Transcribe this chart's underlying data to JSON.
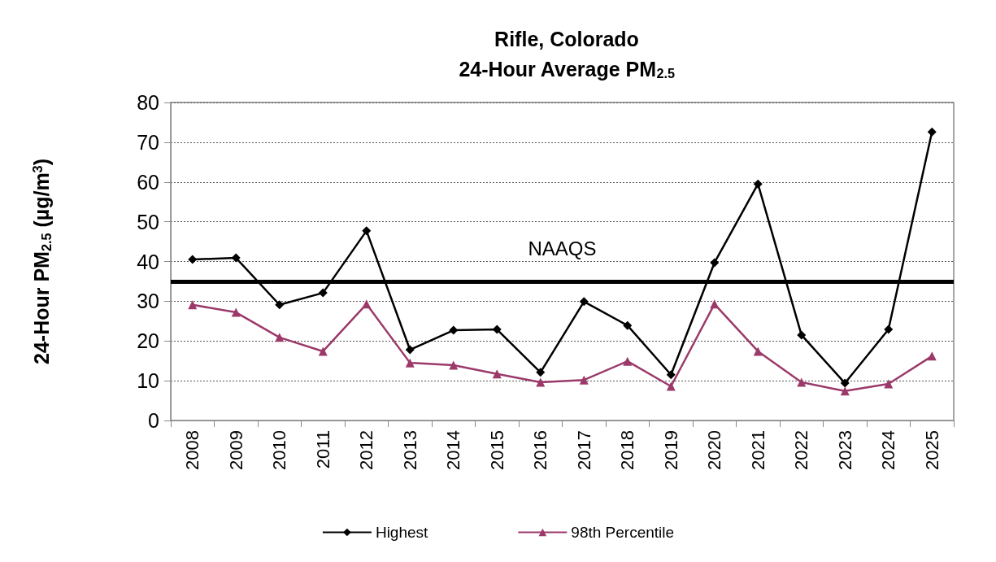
{
  "chart_data": {
    "type": "line",
    "title": "Rifle, Colorado",
    "subtitle": "24-Hour Average PM$_{2.5}$",
    "ylabel": "24-Hour PM$_{2.5}$ (µg/m$^{3}$)",
    "categories": [
      "2008",
      "2009",
      "2010",
      "2011",
      "2012",
      "2013",
      "2014",
      "2015",
      "2016",
      "2017",
      "2018",
      "2019",
      "2020",
      "2021",
      "2022",
      "2023",
      "2024",
      "2025"
    ],
    "series": [
      {
        "name": "Highest",
        "color": "#000000",
        "marker": "diamond",
        "values": [
          40.5,
          40.9,
          29.1,
          32.1,
          47.7,
          17.8,
          22.7,
          22.9,
          12.1,
          29.9,
          23.9,
          11.5,
          39.7,
          59.5,
          21.5,
          9.4,
          22.9,
          72.6
        ]
      },
      {
        "name": "98th Percentile",
        "color": "#9b3a6a",
        "marker": "triangle",
        "values": [
          29.1,
          27.2,
          20.9,
          17.4,
          29.3,
          14.5,
          13.9,
          11.7,
          9.6,
          10.2,
          14.9,
          8.6,
          29.3,
          17.4,
          9.6,
          7.4,
          9.2,
          16.2
        ]
      }
    ],
    "ylim": [
      0,
      80
    ],
    "yticks": [
      0,
      10,
      20,
      30,
      40,
      50,
      60,
      70,
      80
    ],
    "grid": "y",
    "legend": "bottom",
    "line_style": "solid",
    "ref_lines": [
      {
        "axis": "y",
        "value": 35,
        "label": "NAAQS",
        "color": "#000000"
      }
    ]
  }
}
